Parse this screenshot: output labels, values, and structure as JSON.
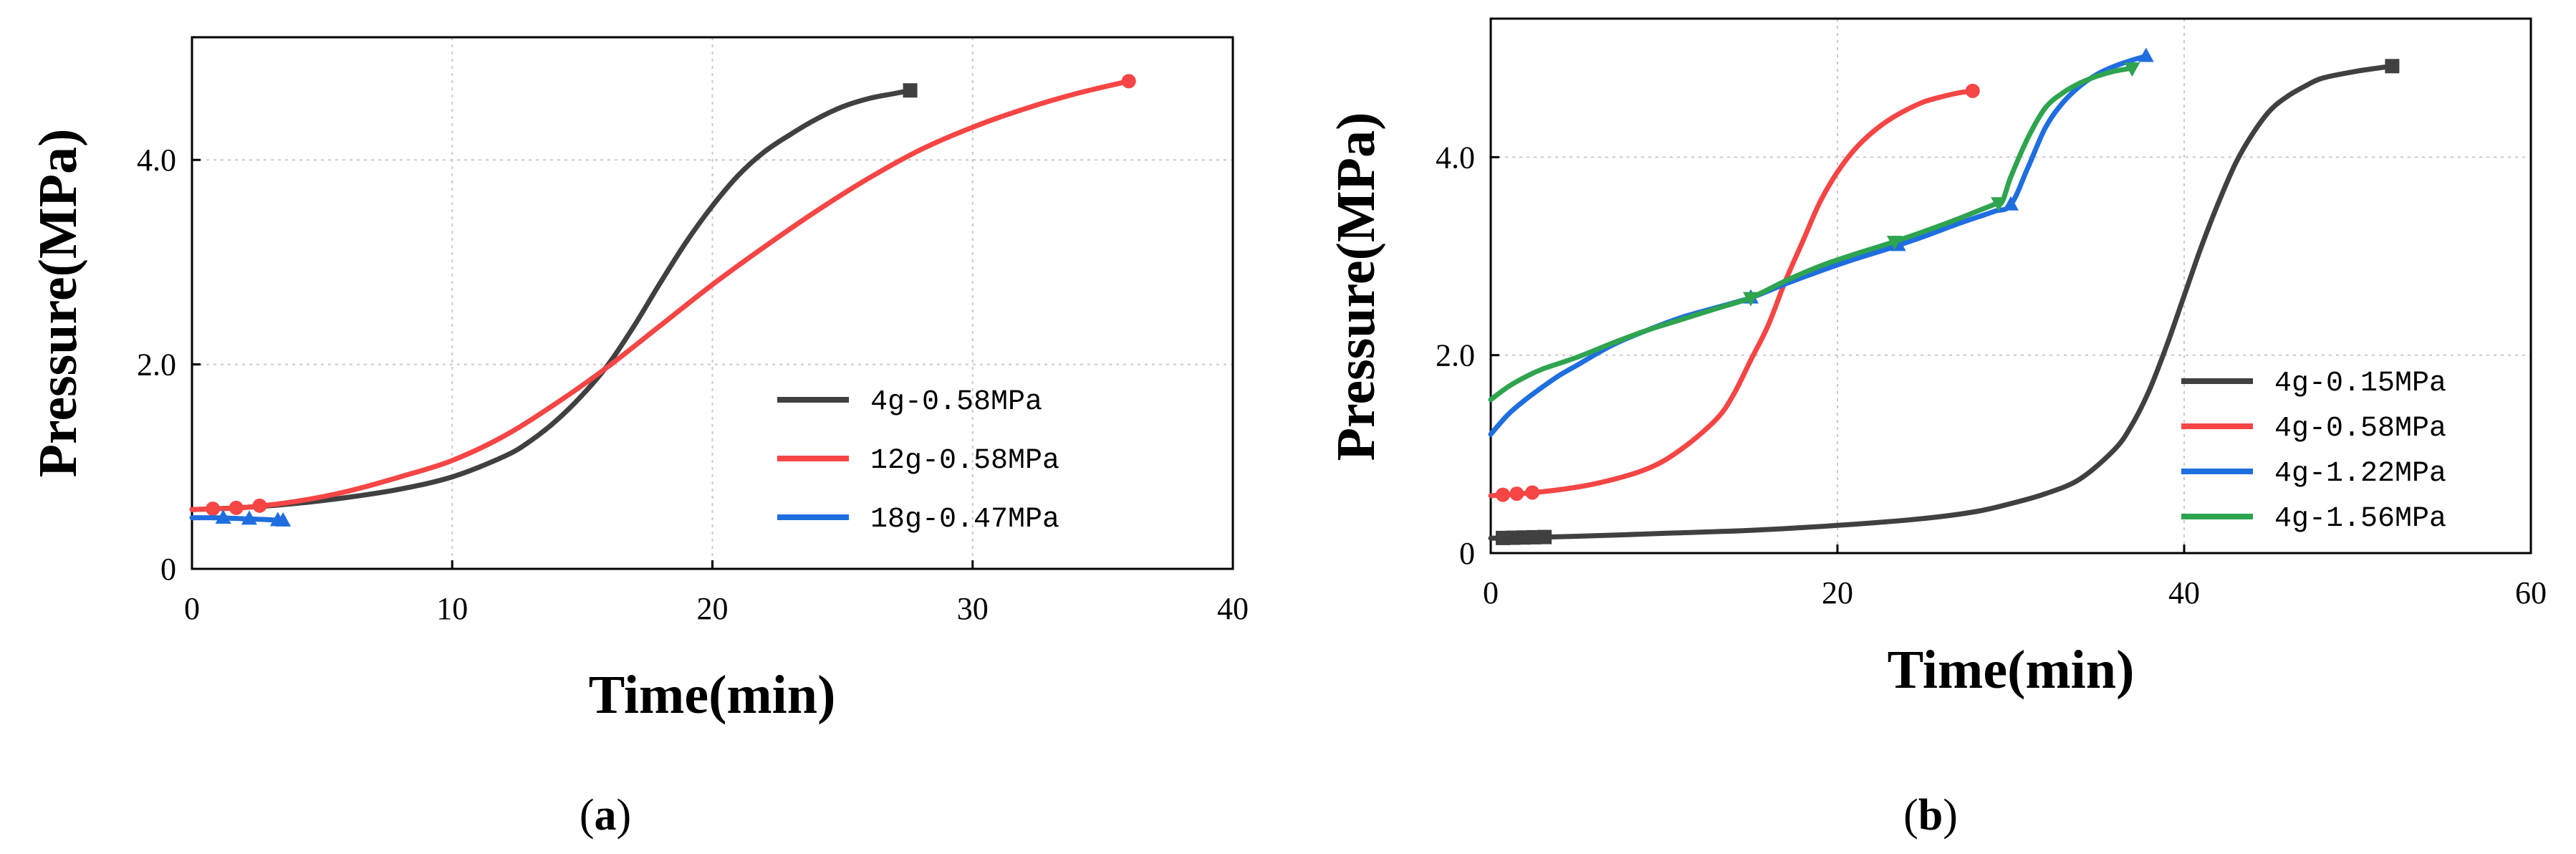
{
  "figure": {
    "captions": [
      {
        "open": "(",
        "letter": "a",
        "close": ")"
      },
      {
        "open": "(",
        "letter": "b",
        "close": ")"
      }
    ]
  },
  "colors": {
    "black": "#404040",
    "red": "#f54545",
    "blue": "#1f6ee0",
    "green": "#2ea44f"
  },
  "chart_data": [
    {
      "type": "line",
      "panel": "a",
      "title": "",
      "xlabel": "Time(min)",
      "ylabel": "Pressure(MPa)",
      "xlim": [
        0,
        40
      ],
      "ylim": [
        0,
        5.2
      ],
      "xticks": [
        0,
        10,
        20,
        30,
        40
      ],
      "xtick_labels": [
        "0",
        "10",
        "20",
        "30",
        "40"
      ],
      "yticks": [
        0,
        2,
        4
      ],
      "ytick_labels": [
        "0",
        "2.0",
        "4.0"
      ],
      "grid": true,
      "legend_position": "right",
      "series": [
        {
          "name": "4g-0.58MPa",
          "color": "#404040",
          "marker": "square",
          "end_marker": "square",
          "marker_x": [],
          "x": [
            0,
            2,
            4,
            6,
            8,
            10,
            12,
            13,
            14,
            15,
            16,
            17,
            18,
            19,
            20,
            21,
            22,
            23,
            24,
            25,
            26,
            27,
            27.6
          ],
          "y": [
            0.58,
            0.6,
            0.64,
            0.7,
            0.78,
            0.9,
            1.1,
            1.25,
            1.45,
            1.7,
            2.0,
            2.38,
            2.8,
            3.2,
            3.55,
            3.85,
            4.08,
            4.25,
            4.4,
            4.52,
            4.6,
            4.65,
            4.68
          ]
        },
        {
          "name": "12g-0.58MPa",
          "color": "#f54545",
          "marker": "circle",
          "end_marker": "circle",
          "marker_x": [
            0.8,
            1.7,
            2.6
          ],
          "x": [
            0,
            2,
            4,
            6,
            8,
            10,
            12,
            14,
            16,
            18,
            20,
            22,
            24,
            26,
            28,
            30,
            32,
            34,
            36
          ],
          "y": [
            0.58,
            0.6,
            0.66,
            0.76,
            0.9,
            1.06,
            1.3,
            1.62,
            1.98,
            2.38,
            2.78,
            3.15,
            3.5,
            3.82,
            4.1,
            4.32,
            4.5,
            4.65,
            4.77
          ]
        },
        {
          "name": "18g-0.47MPa",
          "color": "#1f6ee0",
          "marker": "triangle-up",
          "end_marker": "triangle-up",
          "marker_x": [
            1.2,
            2.2,
            3.3
          ],
          "x": [
            0,
            1,
            2,
            3,
            3.5
          ],
          "y": [
            0.5,
            0.5,
            0.49,
            0.48,
            0.47
          ]
        }
      ]
    },
    {
      "type": "line",
      "panel": "b",
      "title": "",
      "xlabel": "Time(min)",
      "ylabel": "Pressure(MPa)",
      "xlim": [
        0,
        60
      ],
      "ylim": [
        0,
        5.4
      ],
      "xticks": [
        0,
        20,
        40,
        60
      ],
      "xtick_labels": [
        "0",
        "20",
        "40",
        "60"
      ],
      "yticks": [
        0,
        2,
        4
      ],
      "ytick_labels": [
        "0",
        "2.0",
        "4.0"
      ],
      "grid": true,
      "legend_position": "bottom-right",
      "series": [
        {
          "name": "4g-0.15MPa",
          "color": "#404040",
          "marker": "square",
          "end_marker": "square",
          "marker_x": [
            0.7,
            1.3,
            1.9,
            2.5,
            3.1
          ],
          "x": [
            0,
            5,
            10,
            15,
            20,
            25,
            28,
            30,
            32,
            34,
            36,
            37,
            38,
            39,
            40,
            41,
            42,
            43,
            44,
            45,
            46,
            47,
            48,
            50,
            52
          ],
          "y": [
            0.15,
            0.17,
            0.2,
            0.23,
            0.28,
            0.35,
            0.42,
            0.5,
            0.6,
            0.75,
            1.05,
            1.3,
            1.65,
            2.1,
            2.6,
            3.1,
            3.55,
            3.95,
            4.25,
            4.48,
            4.62,
            4.72,
            4.8,
            4.87,
            4.92
          ]
        },
        {
          "name": "4g-0.58MPa",
          "color": "#f54545",
          "marker": "circle",
          "end_marker": "circle",
          "marker_x": [
            0.7,
            1.5,
            2.4
          ],
          "x": [
            0,
            3,
            6,
            9,
            11,
            13,
            14,
            15,
            16,
            17,
            18,
            19,
            20,
            21,
            22,
            23,
            24,
            25,
            26,
            27,
            27.8
          ],
          "y": [
            0.58,
            0.62,
            0.7,
            0.85,
            1.05,
            1.35,
            1.6,
            1.95,
            2.3,
            2.75,
            3.15,
            3.55,
            3.85,
            4.08,
            4.25,
            4.38,
            4.48,
            4.56,
            4.61,
            4.65,
            4.67
          ]
        },
        {
          "name": "4g-1.22MPa",
          "color": "#1f6ee0",
          "marker": "triangle-up",
          "end_marker": "triangle-up",
          "marker_x": [
            15,
            23.5,
            30
          ],
          "x": [
            0,
            1,
            2,
            3,
            4,
            5,
            7,
            9,
            11,
            13,
            15,
            17,
            19,
            21,
            23,
            25,
            27,
            29,
            30,
            31,
            32,
            33,
            34,
            35,
            36,
            37,
            37.8
          ],
          "y": [
            1.2,
            1.4,
            1.55,
            1.68,
            1.8,
            1.9,
            2.1,
            2.25,
            2.38,
            2.48,
            2.58,
            2.72,
            2.85,
            2.97,
            3.08,
            3.2,
            3.33,
            3.45,
            3.52,
            3.9,
            4.3,
            4.55,
            4.72,
            4.84,
            4.92,
            4.98,
            5.02
          ]
        },
        {
          "name": "4g-1.56MPa",
          "color": "#2ea44f",
          "marker": "triangle-down",
          "end_marker": "triangle-down",
          "marker_x": [
            15,
            23.3,
            29.3
          ],
          "x": [
            0,
            1,
            2,
            3,
            5,
            7,
            9,
            11,
            13,
            15,
            17,
            19,
            21,
            23,
            25,
            27,
            29,
            29.5,
            30,
            31,
            32,
            33,
            34,
            35,
            36,
            37
          ],
          "y": [
            1.55,
            1.68,
            1.78,
            1.86,
            1.98,
            2.12,
            2.25,
            2.36,
            2.47,
            2.58,
            2.75,
            2.9,
            3.02,
            3.13,
            3.25,
            3.38,
            3.52,
            3.55,
            3.8,
            4.2,
            4.5,
            4.65,
            4.75,
            4.82,
            4.87,
            4.9
          ]
        }
      ]
    }
  ]
}
